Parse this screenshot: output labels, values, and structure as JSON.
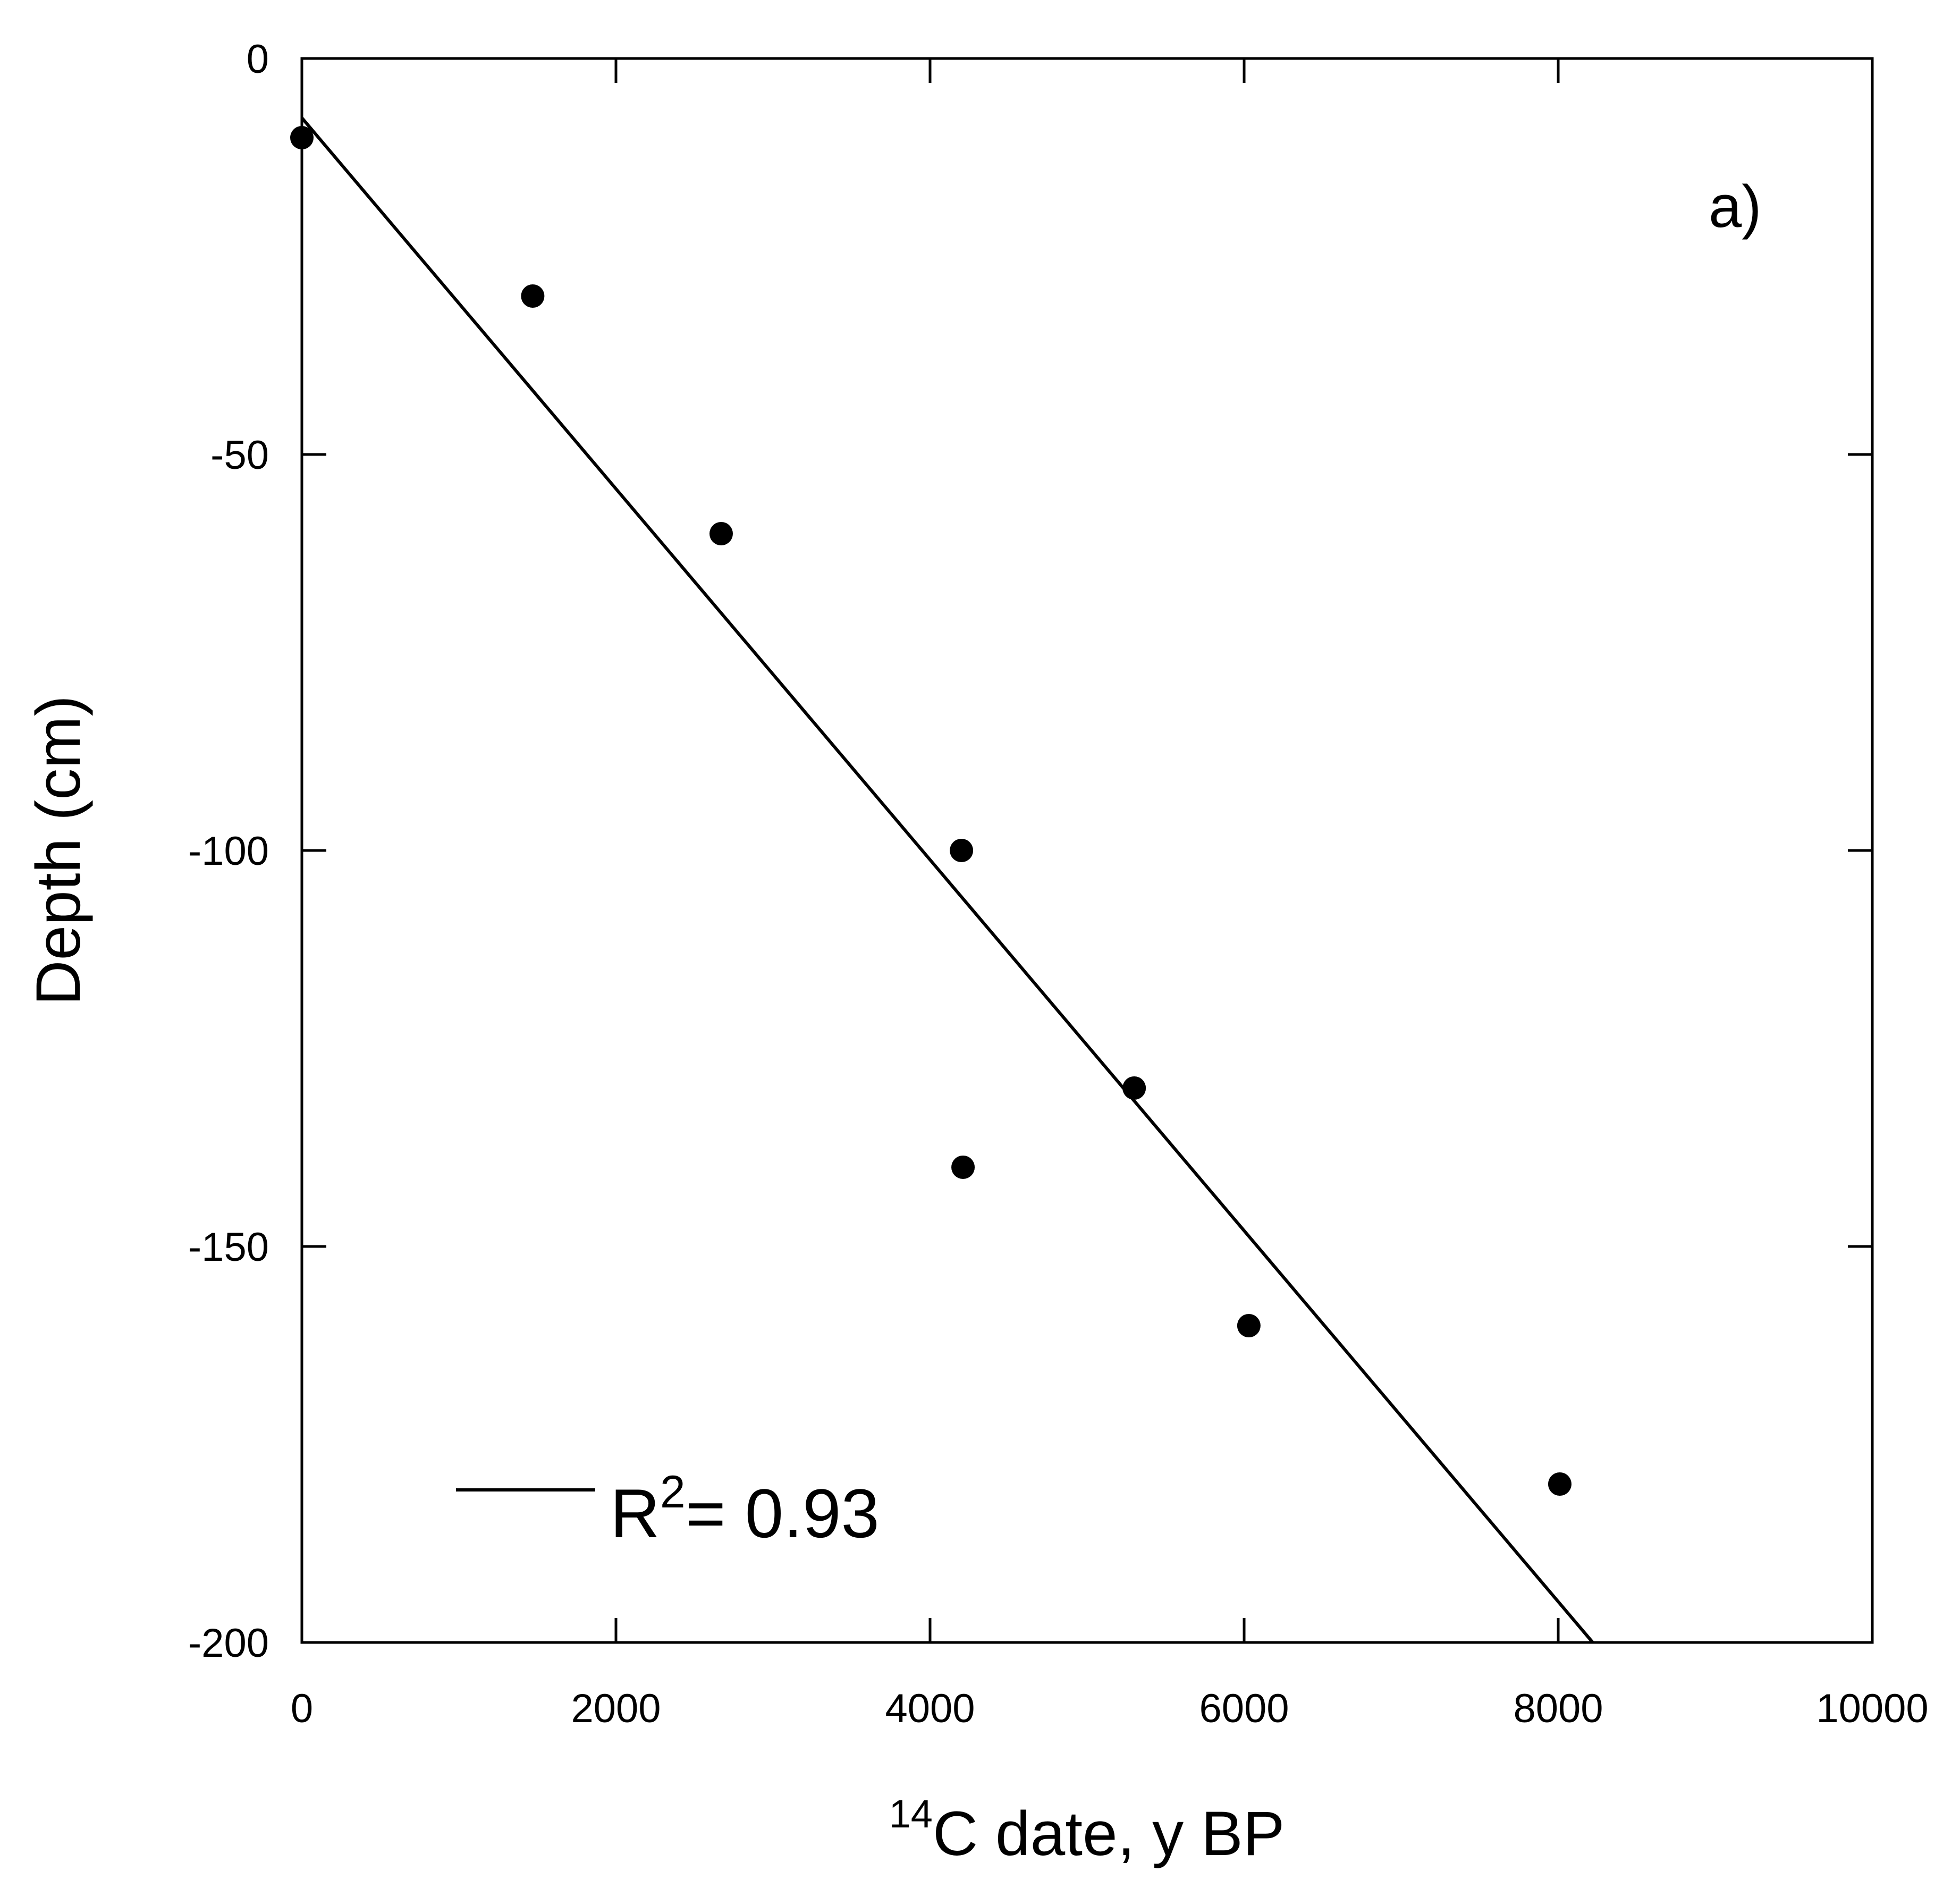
{
  "chart_data": {
    "type": "scatter",
    "title": "",
    "panel_label": "a)",
    "xlabel": {
      "superscript": "14",
      "text": "C date, y BP"
    },
    "ylabel": "Depth (cm)",
    "xlim": [
      0,
      10000
    ],
    "ylim": [
      -200,
      0
    ],
    "xticks": [
      0,
      2000,
      4000,
      6000,
      8000,
      10000
    ],
    "xtick_labels": [
      "0",
      "2000",
      "4000",
      "6000",
      "8000",
      "10000"
    ],
    "yticks": [
      0,
      -50,
      -100,
      -150,
      -200
    ],
    "ytick_labels": [
      "0",
      "-50",
      "-100",
      "-150",
      "-200"
    ],
    "grid": false,
    "series": [
      {
        "marker": "filled-circle",
        "color": "#000000",
        "points": [
          {
            "x": 0,
            "y": -10
          },
          {
            "x": 1470,
            "y": -30
          },
          {
            "x": 2670,
            "y": -60
          },
          {
            "x": 4200,
            "y": -100
          },
          {
            "x": 4210,
            "y": -140
          },
          {
            "x": 5300,
            "y": -130
          },
          {
            "x": 6030,
            "y": -160
          },
          {
            "x": 8010,
            "y": -180
          }
        ]
      }
    ],
    "fit_line": {
      "kind": "linear",
      "color": "#000000",
      "x": [
        0,
        8220
      ],
      "y": [
        -7.5,
        -200
      ]
    },
    "legend": {
      "position": "bottom-left",
      "label_main": "R",
      "label_sup": "2",
      "label_rest": "= 0.93"
    }
  }
}
